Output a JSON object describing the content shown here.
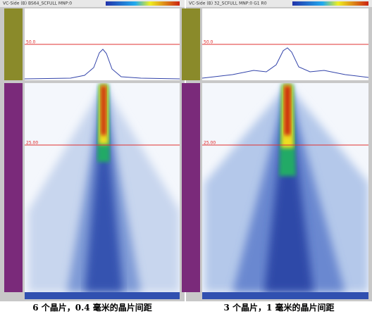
{
  "panels": [
    {
      "header": "VC-Side (B) BS64_SCFULL MNP:0",
      "top_marker": "50.0",
      "bottom_marker": "25.00",
      "caption": "6 个晶片，0.4 毫米的晶片间距"
    },
    {
      "header": "VC-Side (B) 32_SCFULL MNP:0 G1 R0",
      "top_marker": "50.0",
      "bottom_marker": "25.00",
      "caption": "3 个晶片，1 毫米的晶片间距"
    }
  ]
}
